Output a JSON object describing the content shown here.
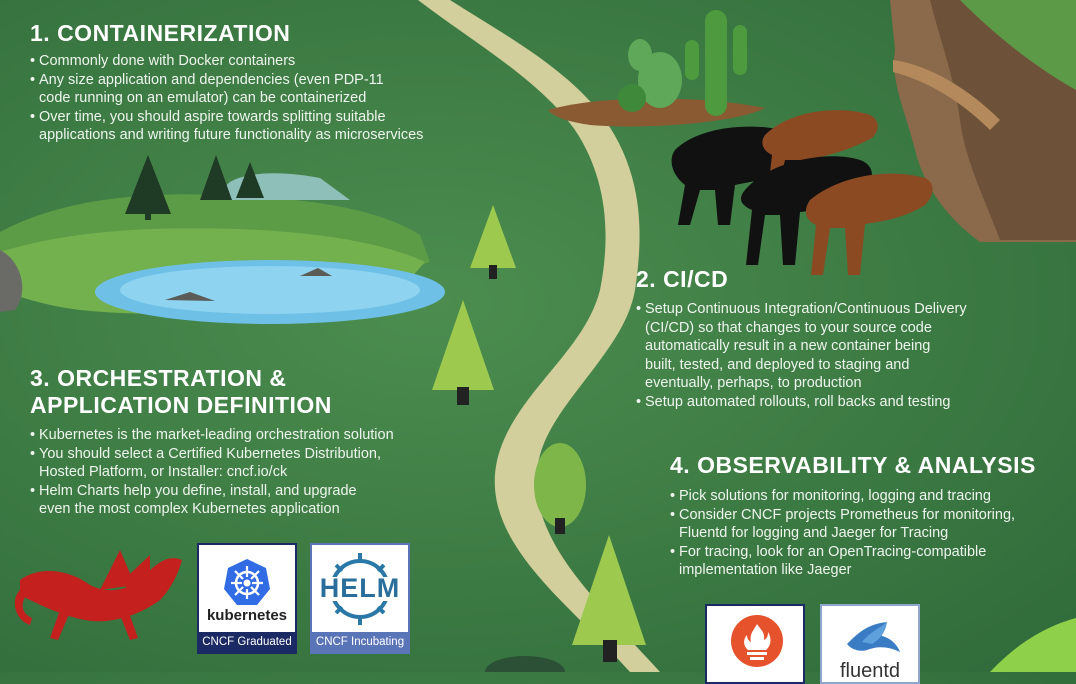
{
  "sections": [
    {
      "heading": [
        "1. CONTAINERIZATION"
      ],
      "bullets": [
        "Commonly done with Docker containers",
        "Any size application and dependencies (even PDP-11\ncode running on an emulator) can be containerized",
        "Over time, you should aspire towards splitting suitable\napplications and writing future functionality as microservices"
      ]
    },
    {
      "heading": [
        "2. CI/CD"
      ],
      "bullets": [
        "Setup Continuous Integration/Continuous Delivery\n(CI/CD) so that changes to your source code\nautomatically result in a new container being\nbuilt, tested, and deployed to staging and\neventually, perhaps, to production",
        "Setup automated rollouts, roll backs and testing"
      ]
    },
    {
      "heading": [
        "3. ORCHESTRATION &",
        "APPLICATION DEFINITION"
      ],
      "bullets": [
        "Kubernetes is the market-leading orchestration solution",
        "You should select a Certified Kubernetes Distribution,\nHosted Platform, or Installer: cncf.io/ck",
        "Helm Charts help you define, install, and upgrade\neven the most complex Kubernetes application"
      ]
    },
    {
      "heading": [
        "4. OBSERVABILITY & ANALYSIS"
      ],
      "bullets": [
        "Pick solutions for monitoring, logging and tracing",
        "Consider CNCF projects Prometheus for monitoring,\nFluentd for logging and Jaeger for Tracing",
        "For tracing, look for an OpenTracing-compatible\nimplementation like Jaeger"
      ]
    }
  ],
  "badges": {
    "kubernetes": {
      "logo": "kubernetes",
      "caption": "CNCF Graduated",
      "caption_color": "#1b2a64"
    },
    "helm": {
      "logo": "HELM",
      "caption": "CNCF Incubating",
      "caption_color": "#5a74b8"
    },
    "fluentd": {
      "logo": "fluentd"
    }
  },
  "icons": [
    "kubernetes-wheel-icon",
    "helm-wheel-icon",
    "prometheus-flame-icon",
    "fluentd-bird-icon"
  ],
  "colors": {
    "background": "#3c7a43",
    "path": "#d6d3a0",
    "kubernetes_blue": "#326ce5",
    "prometheus_orange": "#e6522c"
  }
}
